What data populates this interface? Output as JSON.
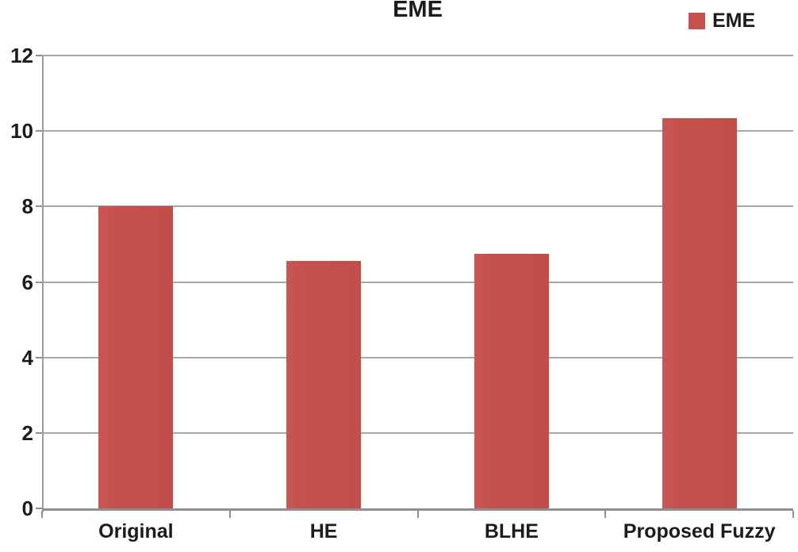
{
  "chart_data": {
    "type": "bar",
    "title": "EME",
    "categories": [
      "Original",
      "HE",
      "BLHE",
      "Proposed Fuzzy"
    ],
    "series": [
      {
        "name": "EME",
        "values": [
          8.0,
          6.55,
          6.75,
          10.35
        ]
      }
    ],
    "ylabel": "",
    "xlabel": "",
    "ylim": [
      0,
      12
    ],
    "yticks": [
      0,
      2,
      4,
      6,
      8,
      10,
      12
    ],
    "grid": "horizontal-on",
    "legend": {
      "position": "top-right",
      "entries": [
        "EME"
      ]
    },
    "colors": {
      "bar": "#c5514d",
      "gridline": "#a8a8a8",
      "axis": "#8f8f8f",
      "text": "#1b1b1b",
      "background": "#ffffff"
    }
  }
}
